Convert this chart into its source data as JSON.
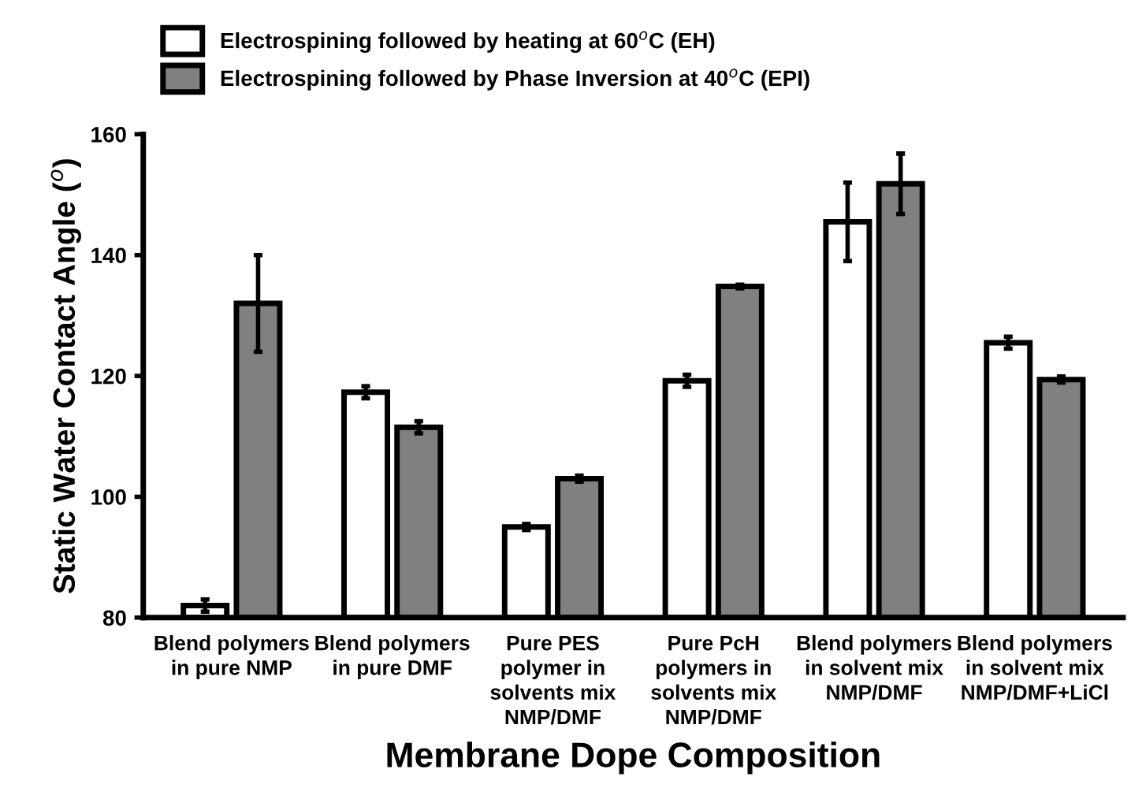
{
  "chart_data": {
    "type": "bar",
    "xlabel": "Membrane Dope Composition",
    "ylabel": "Static Water Contact Angle ($^{o}$)",
    "categories": [
      "Blend polymers\nin pure NMP",
      "Blend polymers\nin pure DMF",
      "Pure PES\npolymer in\nsolvents mix\nNMP/DMF",
      "Pure PcH\npolymers in\nsolvents mix\nNMP/DMF",
      "Blend polymers\nin solvent mix\nNMP/DMF",
      "Blend polymers\nin solvent mix\nNMP/DMF+LiCl"
    ],
    "series": [
      {
        "name": "Electrospining followed by heating at 60$^{o}$C (EH)",
        "color": "#ffffff",
        "values": [
          82,
          117.3,
          95,
          119.2,
          145.5,
          125.5
        ],
        "errors": [
          1,
          1,
          0.5,
          1,
          6.5,
          1
        ]
      },
      {
        "name": "Electrospining followed by Phase Inversion at 40$^{o}$C (EPI)",
        "color": "#808080",
        "values": [
          132,
          111.5,
          103,
          134.8,
          151.8,
          119.4
        ],
        "errors": [
          8,
          1,
          0.5,
          0.3,
          5,
          0.5
        ]
      }
    ],
    "ylim": [
      80,
      160
    ],
    "yticks": [
      80,
      100,
      120,
      140,
      160
    ],
    "grid": false,
    "legend": "top left"
  }
}
